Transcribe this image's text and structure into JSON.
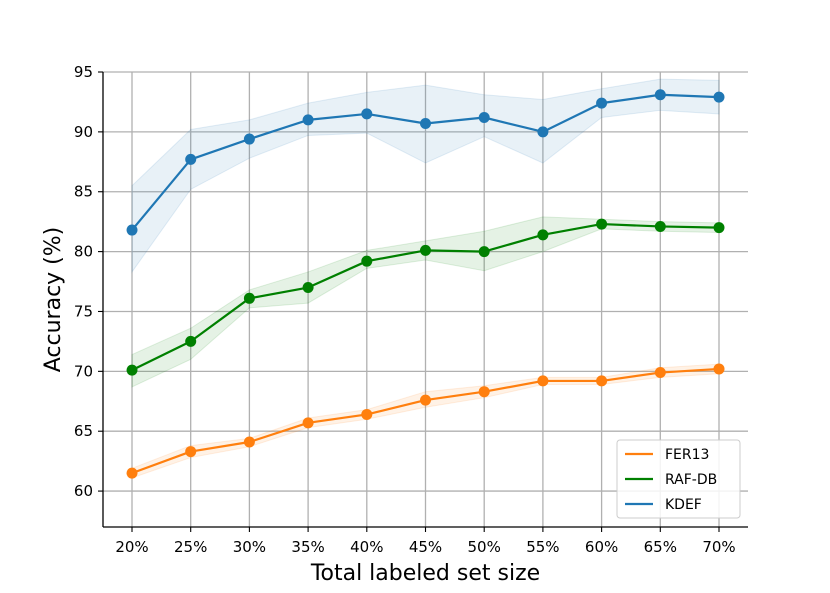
{
  "chart_data": {
    "type": "line",
    "title": "",
    "xlabel": "Total labeled set size",
    "ylabel": "Accuracy (%)",
    "categories": [
      "20%",
      "25%",
      "30%",
      "35%",
      "40%",
      "45%",
      "50%",
      "55%",
      "60%",
      "65%",
      "70%"
    ],
    "ylim": [
      57,
      95
    ],
    "yticks": [
      60,
      65,
      70,
      75,
      80,
      85,
      90,
      95
    ],
    "grid": true,
    "legend_position": "lower-right",
    "series": [
      {
        "name": "FER13",
        "color": "#ff7f0e",
        "values": [
          61.5,
          63.3,
          64.1,
          65.7,
          66.4,
          67.6,
          68.3,
          69.2,
          69.2,
          69.9,
          70.2
        ],
        "lower": [
          61.1,
          62.8,
          63.7,
          65.3,
          66.0,
          67.0,
          67.8,
          68.9,
          68.9,
          69.5,
          69.8
        ],
        "upper": [
          61.9,
          63.8,
          64.4,
          66.1,
          66.8,
          68.3,
          68.8,
          69.5,
          69.5,
          70.3,
          70.6
        ]
      },
      {
        "name": "RAF-DB",
        "color": "#008000",
        "values": [
          70.1,
          72.5,
          76.1,
          77.0,
          79.2,
          80.1,
          80.0,
          81.4,
          82.3,
          82.1,
          82.0
        ],
        "lower": [
          68.7,
          71.0,
          75.3,
          75.7,
          78.6,
          79.3,
          78.4,
          80.0,
          81.9,
          81.7,
          81.6
        ],
        "upper": [
          71.4,
          73.6,
          76.8,
          78.3,
          80.1,
          80.9,
          81.7,
          82.9,
          82.7,
          82.5,
          82.4
        ]
      },
      {
        "name": "KDEF",
        "color": "#1f77b4",
        "values": [
          81.8,
          87.7,
          89.4,
          91.0,
          91.5,
          90.7,
          91.2,
          90.0,
          92.4,
          93.1,
          92.9
        ],
        "lower": [
          78.3,
          85.2,
          87.8,
          89.7,
          89.9,
          87.4,
          89.6,
          87.4,
          91.2,
          91.8,
          91.5
        ],
        "upper": [
          85.5,
          90.2,
          91.0,
          92.4,
          93.3,
          93.9,
          93.1,
          92.7,
          93.6,
          94.4,
          94.3
        ]
      }
    ],
    "legend_order": [
      "FER13",
      "RAF-DB",
      "KDEF"
    ]
  }
}
